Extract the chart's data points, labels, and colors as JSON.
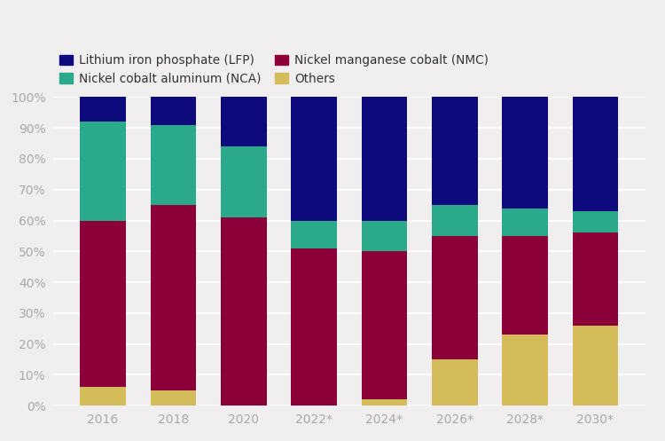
{
  "categories": [
    "2016",
    "2018",
    "2020",
    "2022*",
    "2024*",
    "2026*",
    "2028*",
    "2030*"
  ],
  "others": [
    6,
    5,
    0,
    0,
    2,
    15,
    23,
    26
  ],
  "nmc": [
    54,
    60,
    61,
    51,
    48,
    40,
    32,
    30
  ],
  "nca": [
    32,
    26,
    23,
    9,
    10,
    10,
    9,
    7
  ],
  "lfp": [
    8,
    9,
    16,
    40,
    40,
    35,
    36,
    37
  ],
  "color_others": "#d4bc5a",
  "color_nmc": "#8b0038",
  "color_nca": "#2aaa8a",
  "color_lfp": "#0d0a7e",
  "legend_labels": [
    "Lithium iron phosphate (LFP)",
    "Nickel cobalt aluminum (NCA)",
    "Nickel manganese cobalt (NMC)",
    "Others"
  ],
  "background_color": "#f0eeee",
  "bar_width": 0.65,
  "ylim": [
    0,
    100
  ],
  "yticks": [
    0,
    10,
    20,
    30,
    40,
    50,
    60,
    70,
    80,
    90,
    100
  ],
  "tick_label_color": "#aaaaaa",
  "grid_color": "#ffffff",
  "figsize": [
    7.5,
    4.97
  ],
  "dpi": 100
}
